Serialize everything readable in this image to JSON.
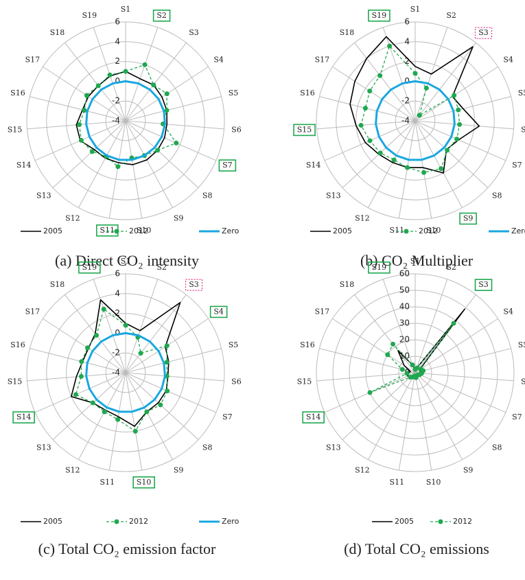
{
  "chart_data": [
    {
      "type": "radar",
      "caption": "(a) Direct CO₂ intensity",
      "categories": [
        "S1",
        "S2",
        "S3",
        "S4",
        "S5",
        "S6",
        "S7",
        "S8",
        "S9",
        "S10",
        "S11",
        "S12",
        "S13",
        "S14",
        "S15",
        "S16",
        "S17",
        "S18",
        "S19"
      ],
      "rlim": [
        -4,
        6
      ],
      "rticks": [
        -4,
        -2,
        0,
        2,
        4,
        6
      ],
      "highlight_green": [
        "S2",
        "S7",
        "S11"
      ],
      "highlight_pink": [],
      "series": [
        {
          "name": "2005",
          "color": "#000000",
          "values": [
            1.0,
            0.5,
            0.6,
            0.4,
            0.3,
            0.2,
            0.3,
            0.4,
            0.5,
            0.5,
            0.3,
            0.3,
            0.3,
            1.0,
            1.0,
            0.5,
            0.5,
            0.5,
            0.8
          ]
        },
        {
          "name": "2012",
          "color": "#1fa84f",
          "values": [
            1.0,
            2.0,
            0.6,
            1.0,
            0.3,
            -0.2,
            1.6,
            0.4,
            0.0,
            -0.2,
            0.7,
            0.1,
            0.6,
            0.9,
            0.7,
            0.3,
            0.7,
            0.5,
            0.9
          ]
        },
        {
          "name": "Zero",
          "color": "#1aa7e0",
          "values": [
            0,
            0,
            0,
            0,
            0,
            0,
            0,
            0,
            0,
            0,
            0,
            0,
            0,
            0,
            0,
            0,
            0,
            0,
            0
          ]
        }
      ]
    },
    {
      "type": "radar",
      "caption": "(b) CO₂ Multiplier",
      "categories": [
        "S1",
        "S2",
        "S3",
        "S4",
        "S5",
        "S6",
        "S7",
        "S8",
        "S9",
        "S10",
        "S11",
        "S12",
        "S13",
        "S14",
        "S15",
        "S16",
        "S17",
        "S18",
        "S19"
      ],
      "rlim": [
        -4,
        6
      ],
      "rticks": [
        -4,
        -2,
        0,
        2,
        4,
        6
      ],
      "highlight_green": [
        "S19",
        "S15",
        "S9"
      ],
      "highlight_pink": [
        "S3"
      ],
      "series": [
        {
          "name": "2005",
          "color": "#000000",
          "values": [
            1.5,
            1.0,
            5.5,
            0.5,
            1.0,
            2.5,
            0.8,
            0.3,
            2.0,
            0.8,
            0.8,
            0.8,
            1.0,
            1.5,
            2.0,
            2.8,
            3.3,
            4.0,
            5.0
          ]
        },
        {
          "name": "2012",
          "color": "#1fa84f",
          "values": [
            0.8,
            -0.5,
            -3.3,
            0.7,
            0.5,
            0.5,
            0.6,
            0.4,
            1.5,
            1.3,
            0.8,
            0.5,
            0.8,
            1.0,
            1.5,
            1.2,
            1.5,
            1.8,
            4.0
          ]
        },
        {
          "name": "Zero",
          "color": "#1aa7e0",
          "values": [
            0,
            0,
            0,
            0,
            0,
            0,
            0,
            0,
            0,
            0,
            0,
            0,
            0,
            0,
            0,
            0,
            0,
            0,
            0
          ]
        }
      ]
    },
    {
      "type": "radar",
      "caption": "(c) Total CO₂ emission factor",
      "categories": [
        "S1",
        "S2",
        "S3",
        "S4",
        "S5",
        "S6",
        "S7",
        "S8",
        "S9",
        "S10",
        "S11",
        "S12",
        "S13",
        "S14",
        "S15",
        "S16",
        "S17",
        "S18",
        "S19"
      ],
      "rlim": [
        -4,
        6
      ],
      "rticks": [
        -4,
        -2,
        0,
        2,
        4,
        6
      ],
      "highlight_green": [
        "S19",
        "S4",
        "S14",
        "S10"
      ],
      "highlight_pink": [
        "S3"
      ],
      "series": [
        {
          "name": "2005",
          "color": "#000000",
          "values": [
            1.0,
            0.5,
            5.0,
            0.8,
            0.5,
            0.3,
            0.5,
            0.5,
            0.5,
            1.5,
            0.5,
            0.3,
            0.5,
            2.0,
            1.0,
            0.5,
            0.5,
            1.0,
            3.8
          ]
        },
        {
          "name": "2012",
          "color": "#1fa84f",
          "values": [
            0.8,
            -0.2,
            -1.5,
            1.0,
            0.3,
            0.2,
            0.6,
            0.8,
            0.5,
            2.0,
            0.8,
            0.5,
            0.5,
            1.5,
            0.5,
            0.6,
            0.6,
            0.8,
            2.8
          ]
        },
        {
          "name": "Zero",
          "color": "#1aa7e0",
          "values": [
            0,
            0,
            0,
            0,
            0,
            0,
            0,
            0,
            0,
            0,
            0,
            0,
            0,
            0,
            0,
            0,
            0,
            0,
            0
          ]
        }
      ]
    },
    {
      "type": "radar",
      "caption": "(d) Total CO₂ emissions",
      "categories": [
        "S1",
        "S2",
        "S3",
        "S4",
        "S5",
        "S6",
        "S7",
        "S8",
        "S9",
        "S10",
        "S11",
        "S12",
        "S13",
        "S14",
        "S15",
        "S16",
        "S17",
        "S18",
        "S19"
      ],
      "rlim": [
        0,
        60
      ],
      "rticks": [
        0,
        10,
        20,
        30,
        40,
        50,
        60
      ],
      "highlight_green": [
        "S19",
        "S3",
        "S14"
      ],
      "highlight_pink": [],
      "series": [
        {
          "name": "2005",
          "color": "#000000",
          "values": [
            2,
            3,
            49,
            3,
            3,
            3,
            2,
            1,
            1,
            2,
            1,
            2,
            3,
            5,
            4,
            3,
            8,
            17,
            5
          ]
        },
        {
          "name": "2012",
          "color": "#1fa84f",
          "values": [
            2,
            3,
            38,
            4,
            5,
            4,
            3,
            2,
            2,
            3,
            2,
            3,
            4,
            30,
            5,
            8,
            20,
            22,
            5
          ]
        }
      ]
    }
  ]
}
